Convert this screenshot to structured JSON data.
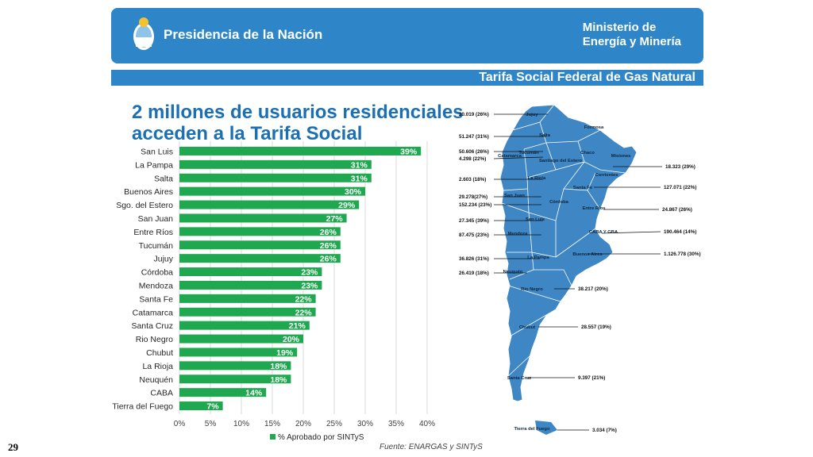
{
  "header": {
    "presidency": "Presidencia de la Nación",
    "ministry_line1": "Ministerio de",
    "ministry_line2": "Energía y Minería"
  },
  "strip_title": "Tarifa Social Federal de Gas Natural",
  "headline_line1": "2 millones de usuarios residenciales",
  "headline_line2": "acceden a la Tarifa Social",
  "page_number": "29",
  "source": "Fuente: ENARGAS y SINTyS",
  "colors": {
    "brand_blue": "#2e86c9",
    "bar_green": "#1fa84f",
    "map_blue": "#3f86c4"
  },
  "chart_data": {
    "type": "bar",
    "orientation": "horizontal",
    "categories": [
      "San Luis",
      "La Pampa",
      "Salta",
      "Buenos Aires",
      "Sgo. del Estero",
      "San Juan",
      "Entre Ríos",
      "Tucumán",
      "Jujuy",
      "Córdoba",
      "Mendoza",
      "Santa Fe",
      "Catamarca",
      "Santa Cruz",
      "Rio Negro",
      "Chubut",
      "La Rioja",
      "Neuquén",
      "CABA",
      "Tierra del Fuego"
    ],
    "values": [
      39,
      31,
      31,
      30,
      29,
      27,
      26,
      26,
      26,
      23,
      23,
      22,
      22,
      21,
      20,
      19,
      18,
      18,
      14,
      7
    ],
    "value_labels": [
      "39%",
      "31%",
      "31%",
      "30%",
      "29%",
      "27%",
      "26%",
      "26%",
      "26%",
      "23%",
      "23%",
      "22%",
      "22%",
      "21%",
      "20%",
      "19%",
      "18%",
      "18%",
      "14%",
      "7%"
    ],
    "xlim": [
      0,
      40
    ],
    "ticks": [
      "0%",
      "5%",
      "10%",
      "15%",
      "20%",
      "25%",
      "30%",
      "35%",
      "40%"
    ],
    "grid": true,
    "legend": "bottom",
    "series_name": "% Aprobado por SINTyS"
  },
  "map": {
    "regions": [
      "Jujuy",
      "Salta",
      "Formosa",
      "Tucumán",
      "Chaco",
      "Misiones",
      "Catamarca",
      "Santiago del Estero",
      "Corrientes",
      "La Rioja",
      "Santa Fe",
      "San Juan",
      "Córdoba",
      "Entre Ríos",
      "San Luis",
      "Mendoza",
      "CABA Y GBA",
      "Buenos Aires",
      "La Pampa",
      "Neuquén",
      "Río Negro",
      "Chubut",
      "Santa Cruz",
      "Tierra del Fuego"
    ],
    "left_labels": [
      "20.019 (26%)",
      "51.247 (31%)",
      "50.606 (26%)",
      "4.298 (22%)",
      "2.603 (18%)",
      "29.278(27%)",
      "152.234 (23%)",
      "27.345 (39%)",
      "87.475 (23%)",
      "36.826 (31%)",
      "26.419 (18%)"
    ],
    "right_labels": [
      "18.323 (29%)",
      "127.071 (22%)",
      "24.867 (26%)",
      "190.464 (14%)",
      "1.126.778 (30%)",
      "38.217 (20%)",
      "28.557 (19%)",
      "9.397 (21%)",
      "3.034 (7%)"
    ]
  }
}
